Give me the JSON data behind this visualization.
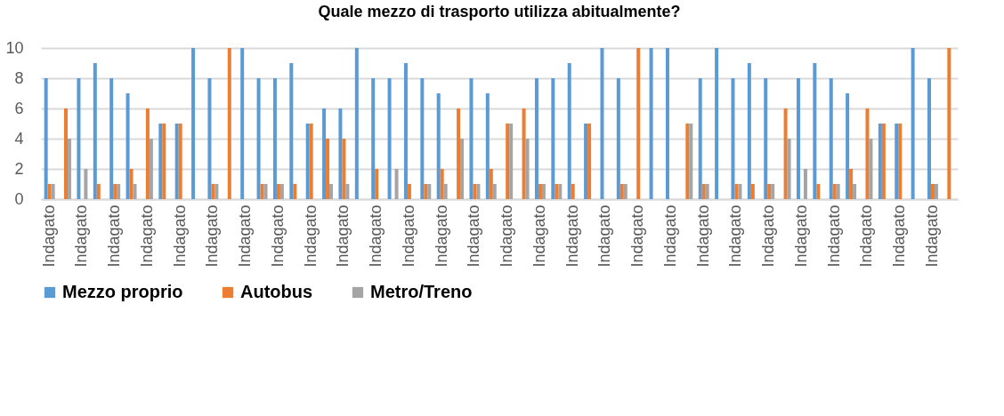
{
  "chart_data": {
    "type": "bar",
    "title": "Quale mezzo di trasporto utilizza abitualmente?",
    "categories": [
      "Indagato",
      null,
      "Indagato",
      null,
      "Indagato",
      null,
      "Indagato",
      null,
      "Indagato",
      null,
      "Indagato",
      null,
      "Indagato",
      null,
      "Indagato",
      null,
      "Indagato",
      null,
      "Indagato",
      null,
      "Indagato",
      null,
      "Indagato",
      null,
      "Indagato",
      null,
      "Indagato",
      null,
      "Indagato",
      null,
      "Indagato",
      null,
      "Indagato",
      null,
      "Indagato",
      null,
      "Indagato",
      null,
      "Indagato",
      null,
      "Indagato",
      null,
      "Indagato",
      null,
      "Indagato",
      null,
      "Indagato",
      null,
      "Indagato",
      null,
      "Indagato",
      null,
      "Indagato",
      null,
      "Indagato",
      null
    ],
    "series": [
      {
        "name": "Mezzo proprio",
        "color": "#5b9bd5",
        "values": [
          8,
          0,
          8,
          9,
          8,
          7,
          0,
          5,
          5,
          10,
          8,
          0,
          10,
          8,
          8,
          9,
          5,
          6,
          6,
          10,
          8,
          8,
          9,
          8,
          7,
          0,
          8,
          7,
          0,
          0,
          8,
          8,
          9,
          5,
          10,
          8,
          0,
          10,
          10,
          0,
          8,
          10,
          8,
          9,
          8,
          0,
          8,
          9,
          8,
          7,
          0,
          5,
          5,
          10,
          8,
          0
        ]
      },
      {
        "name": "Autobus",
        "color": "#ed7d31",
        "values": [
          1,
          6,
          0,
          1,
          1,
          2,
          6,
          5,
          5,
          0,
          1,
          10,
          0,
          1,
          1,
          1,
          5,
          4,
          4,
          0,
          2,
          0,
          1,
          1,
          2,
          6,
          1,
          2,
          5,
          6,
          1,
          1,
          1,
          5,
          0,
          1,
          10,
          0,
          0,
          5,
          1,
          0,
          1,
          1,
          1,
          6,
          0,
          1,
          1,
          2,
          6,
          5,
          5,
          0,
          1,
          10
        ]
      },
      {
        "name": "Metro/Treno",
        "color": "#a5a5a5",
        "values": [
          1,
          4,
          2,
          0,
          1,
          1,
          4,
          0,
          0,
          0,
          1,
          0,
          0,
          1,
          1,
          0,
          0,
          1,
          1,
          0,
          0,
          2,
          0,
          1,
          1,
          4,
          1,
          1,
          5,
          4,
          1,
          1,
          0,
          0,
          0,
          1,
          0,
          0,
          0,
          5,
          1,
          0,
          1,
          0,
          1,
          4,
          2,
          0,
          1,
          1,
          4,
          0,
          0,
          0,
          1,
          0
        ]
      }
    ],
    "ylim": [
      0,
      10
    ],
    "yticks": [
      0,
      2,
      4,
      6,
      8,
      10
    ],
    "grid": "y",
    "legend": "bottom"
  }
}
